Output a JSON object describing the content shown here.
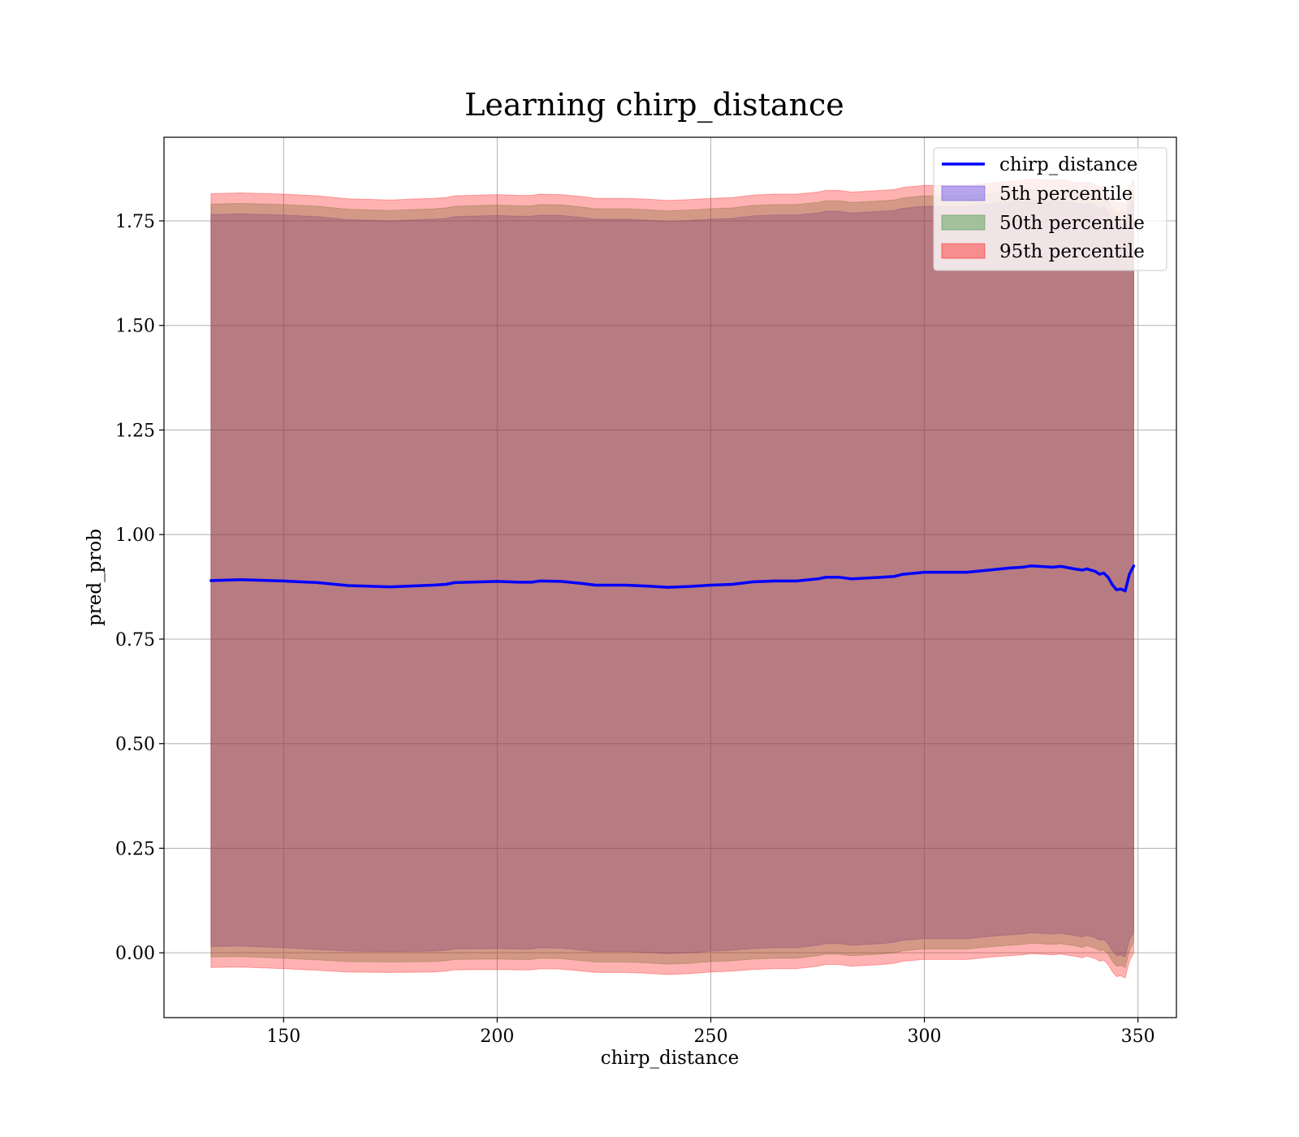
{
  "chart_data": {
    "type": "line",
    "title": "Learning chirp_distance",
    "xlabel": "chirp_distance",
    "ylabel": "pred_prob",
    "xlim": [
      122,
      359
    ],
    "ylim": [
      -0.155,
      1.95
    ],
    "xticks": [
      150,
      200,
      250,
      300,
      350
    ],
    "xtick_labels": [
      "150",
      "200",
      "250",
      "300",
      "350"
    ],
    "yticks": [
      0.0,
      0.25,
      0.5,
      0.75,
      1.0,
      1.25,
      1.5,
      1.75
    ],
    "ytick_labels": [
      "0.00",
      "0.25",
      "0.50",
      "0.75",
      "1.00",
      "1.25",
      "1.50",
      "1.75"
    ],
    "grid": true,
    "legend_position": "top-right",
    "x": [
      133,
      140,
      150,
      158,
      165,
      175,
      185,
      188,
      190,
      200,
      205,
      208,
      210,
      215,
      220,
      223,
      230,
      235,
      240,
      245,
      250,
      255,
      260,
      265,
      270,
      275,
      277,
      280,
      283,
      290,
      293,
      295,
      300,
      305,
      310,
      315,
      320,
      323,
      325,
      327,
      330,
      332,
      333,
      335,
      337,
      338,
      340,
      341,
      342,
      343,
      344,
      345,
      346,
      347,
      348,
      349
    ],
    "series": [
      {
        "name": "chirp_distance",
        "kind": "line",
        "color": "#0000ff",
        "values": [
          0.89,
          0.892,
          0.889,
          0.885,
          0.878,
          0.875,
          0.879,
          0.881,
          0.885,
          0.888,
          0.886,
          0.886,
          0.889,
          0.888,
          0.883,
          0.879,
          0.879,
          0.877,
          0.874,
          0.876,
          0.879,
          0.881,
          0.887,
          0.889,
          0.889,
          0.894,
          0.898,
          0.898,
          0.894,
          0.898,
          0.9,
          0.905,
          0.91,
          0.91,
          0.91,
          0.915,
          0.92,
          0.922,
          0.925,
          0.924,
          0.922,
          0.924,
          0.922,
          0.918,
          0.915,
          0.918,
          0.912,
          0.905,
          0.908,
          0.898,
          0.88,
          0.868,
          0.87,
          0.865,
          0.905,
          0.925
        ]
      },
      {
        "name": "5th percentile",
        "kind": "band",
        "color": "#4a35e8",
        "lower": [
          0.015,
          0.016,
          0.012,
          0.008,
          0.004,
          0.003,
          0.004,
          0.006,
          0.009,
          0.01,
          0.009,
          0.009,
          0.012,
          0.011,
          0.006,
          0.003,
          0.003,
          0.001,
          -0.002,
          0.0,
          0.004,
          0.006,
          0.01,
          0.012,
          0.012,
          0.018,
          0.022,
          0.022,
          0.018,
          0.022,
          0.025,
          0.03,
          0.034,
          0.034,
          0.034,
          0.039,
          0.043,
          0.045,
          0.048,
          0.047,
          0.045,
          0.047,
          0.045,
          0.042,
          0.038,
          0.042,
          0.036,
          0.03,
          0.032,
          0.022,
          0.005,
          -0.007,
          -0.005,
          -0.01,
          0.03,
          0.05
        ],
        "upper": [
          1.765,
          1.767,
          1.764,
          1.76,
          1.753,
          1.75,
          1.754,
          1.756,
          1.76,
          1.763,
          1.761,
          1.761,
          1.764,
          1.763,
          1.758,
          1.754,
          1.754,
          1.752,
          1.749,
          1.751,
          1.754,
          1.756,
          1.762,
          1.764,
          1.764,
          1.769,
          1.773,
          1.773,
          1.769,
          1.773,
          1.775,
          1.78,
          1.785,
          1.785,
          1.785,
          1.79,
          1.795,
          1.797,
          1.8,
          1.799,
          1.797,
          1.799,
          1.797,
          1.793,
          1.79,
          1.793,
          1.787,
          1.78,
          1.783,
          1.773,
          1.755,
          1.743,
          1.745,
          1.74,
          1.78,
          1.8
        ]
      },
      {
        "name": "50th percentile",
        "kind": "band",
        "color": "#2e8b2e",
        "lower": [
          -0.01,
          -0.009,
          -0.013,
          -0.017,
          -0.021,
          -0.022,
          -0.021,
          -0.019,
          -0.016,
          -0.015,
          -0.016,
          -0.016,
          -0.013,
          -0.014,
          -0.019,
          -0.022,
          -0.022,
          -0.024,
          -0.027,
          -0.025,
          -0.021,
          -0.019,
          -0.015,
          -0.013,
          -0.013,
          -0.007,
          -0.003,
          -0.003,
          -0.007,
          -0.003,
          0.0,
          0.005,
          0.009,
          0.009,
          0.009,
          0.014,
          0.018,
          0.02,
          0.023,
          0.022,
          0.02,
          0.022,
          0.02,
          0.017,
          0.013,
          0.017,
          0.011,
          0.005,
          0.007,
          -0.003,
          -0.02,
          -0.032,
          -0.03,
          -0.035,
          0.005,
          0.025
        ],
        "upper": [
          1.79,
          1.792,
          1.789,
          1.785,
          1.778,
          1.775,
          1.779,
          1.781,
          1.785,
          1.788,
          1.786,
          1.786,
          1.789,
          1.788,
          1.783,
          1.779,
          1.779,
          1.777,
          1.774,
          1.776,
          1.779,
          1.781,
          1.787,
          1.789,
          1.789,
          1.794,
          1.798,
          1.798,
          1.794,
          1.798,
          1.8,
          1.805,
          1.81,
          1.81,
          1.81,
          1.815,
          1.82,
          1.822,
          1.825,
          1.824,
          1.822,
          1.824,
          1.822,
          1.818,
          1.815,
          1.818,
          1.812,
          1.805,
          1.808,
          1.798,
          1.78,
          1.768,
          1.77,
          1.765,
          1.805,
          1.825
        ]
      },
      {
        "name": "95th percentile",
        "kind": "band",
        "color": "#ff0000",
        "lower": [
          -0.035,
          -0.034,
          -0.038,
          -0.042,
          -0.046,
          -0.047,
          -0.046,
          -0.044,
          -0.041,
          -0.04,
          -0.041,
          -0.041,
          -0.038,
          -0.039,
          -0.044,
          -0.047,
          -0.047,
          -0.049,
          -0.052,
          -0.05,
          -0.046,
          -0.044,
          -0.04,
          -0.038,
          -0.038,
          -0.032,
          -0.028,
          -0.028,
          -0.032,
          -0.028,
          -0.025,
          -0.02,
          -0.016,
          -0.016,
          -0.016,
          -0.011,
          -0.007,
          -0.005,
          -0.002,
          -0.003,
          -0.005,
          -0.003,
          -0.005,
          -0.008,
          -0.012,
          -0.008,
          -0.014,
          -0.02,
          -0.018,
          -0.028,
          -0.045,
          -0.057,
          -0.055,
          -0.06,
          -0.02,
          0.0
        ],
        "upper": [
          1.815,
          1.817,
          1.814,
          1.81,
          1.803,
          1.8,
          1.804,
          1.806,
          1.81,
          1.813,
          1.811,
          1.811,
          1.814,
          1.813,
          1.808,
          1.804,
          1.804,
          1.802,
          1.799,
          1.801,
          1.804,
          1.806,
          1.812,
          1.814,
          1.814,
          1.819,
          1.823,
          1.823,
          1.819,
          1.823,
          1.825,
          1.83,
          1.835,
          1.835,
          1.835,
          1.84,
          1.845,
          1.847,
          1.85,
          1.849,
          1.847,
          1.849,
          1.847,
          1.843,
          1.84,
          1.843,
          1.837,
          1.83,
          1.833,
          1.823,
          1.805,
          1.793,
          1.795,
          1.79,
          1.83,
          1.85
        ]
      }
    ]
  }
}
